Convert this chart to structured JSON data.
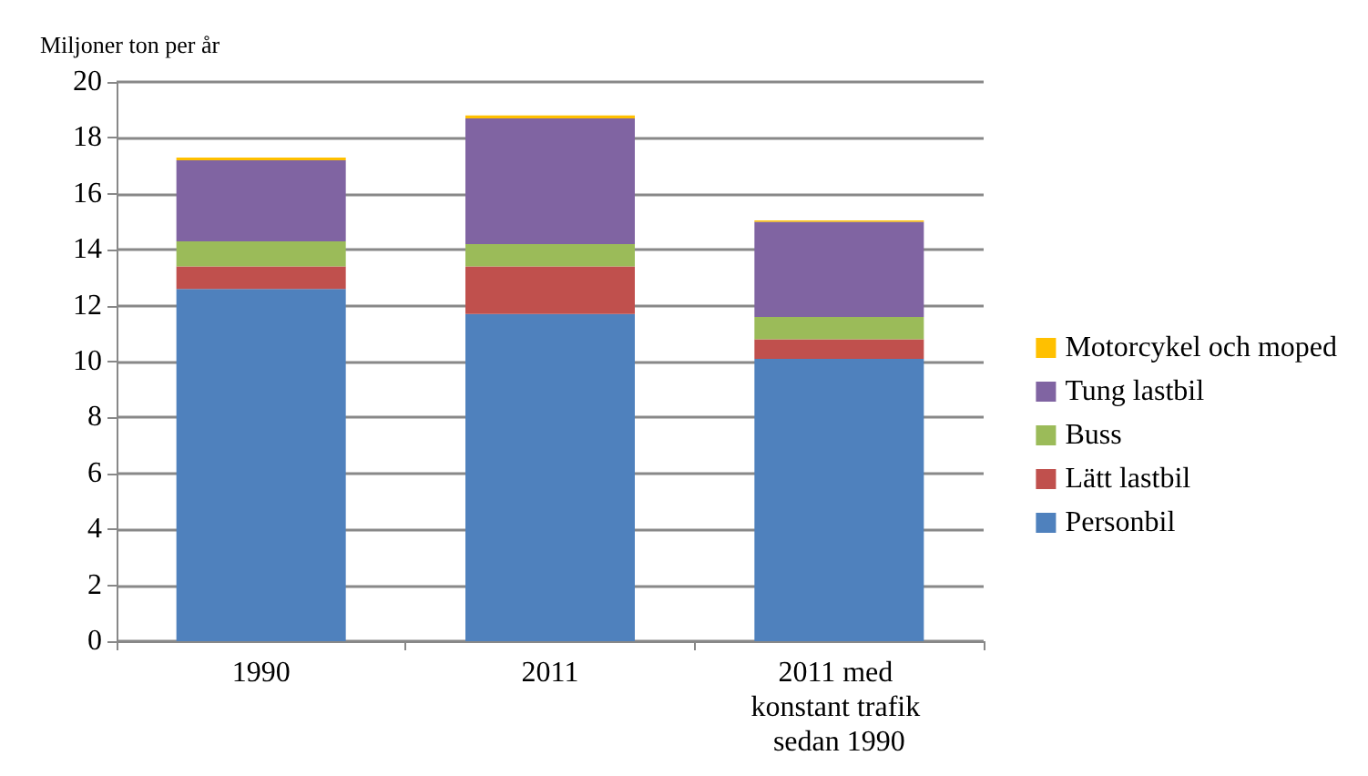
{
  "chart_data": {
    "type": "bar",
    "stacked": true,
    "ylabel": "Miljoner ton per år",
    "categories": [
      "1990",
      "2011",
      "2011 med konstant trafik sedan 1990"
    ],
    "series": [
      {
        "name": "Personbil",
        "color": "#4f81bd",
        "values": [
          12.6,
          11.7,
          10.1
        ]
      },
      {
        "name": "Lätt lastbil",
        "color": "#c0504d",
        "values": [
          0.8,
          1.7,
          0.7
        ]
      },
      {
        "name": "Buss",
        "color": "#9bbb59",
        "values": [
          0.9,
          0.8,
          0.8
        ]
      },
      {
        "name": "Tung lastbil",
        "color": "#8064a2",
        "values": [
          2.9,
          4.5,
          3.4
        ]
      },
      {
        "name": "Motorcykel och moped",
        "color": "#ffc000",
        "values": [
          0.1,
          0.1,
          0.05
        ]
      }
    ],
    "ylim": [
      0,
      20
    ],
    "yticks": [
      0,
      2,
      4,
      6,
      8,
      10,
      12,
      14,
      16,
      18,
      20
    ],
    "grid": "y",
    "legend": "right"
  }
}
